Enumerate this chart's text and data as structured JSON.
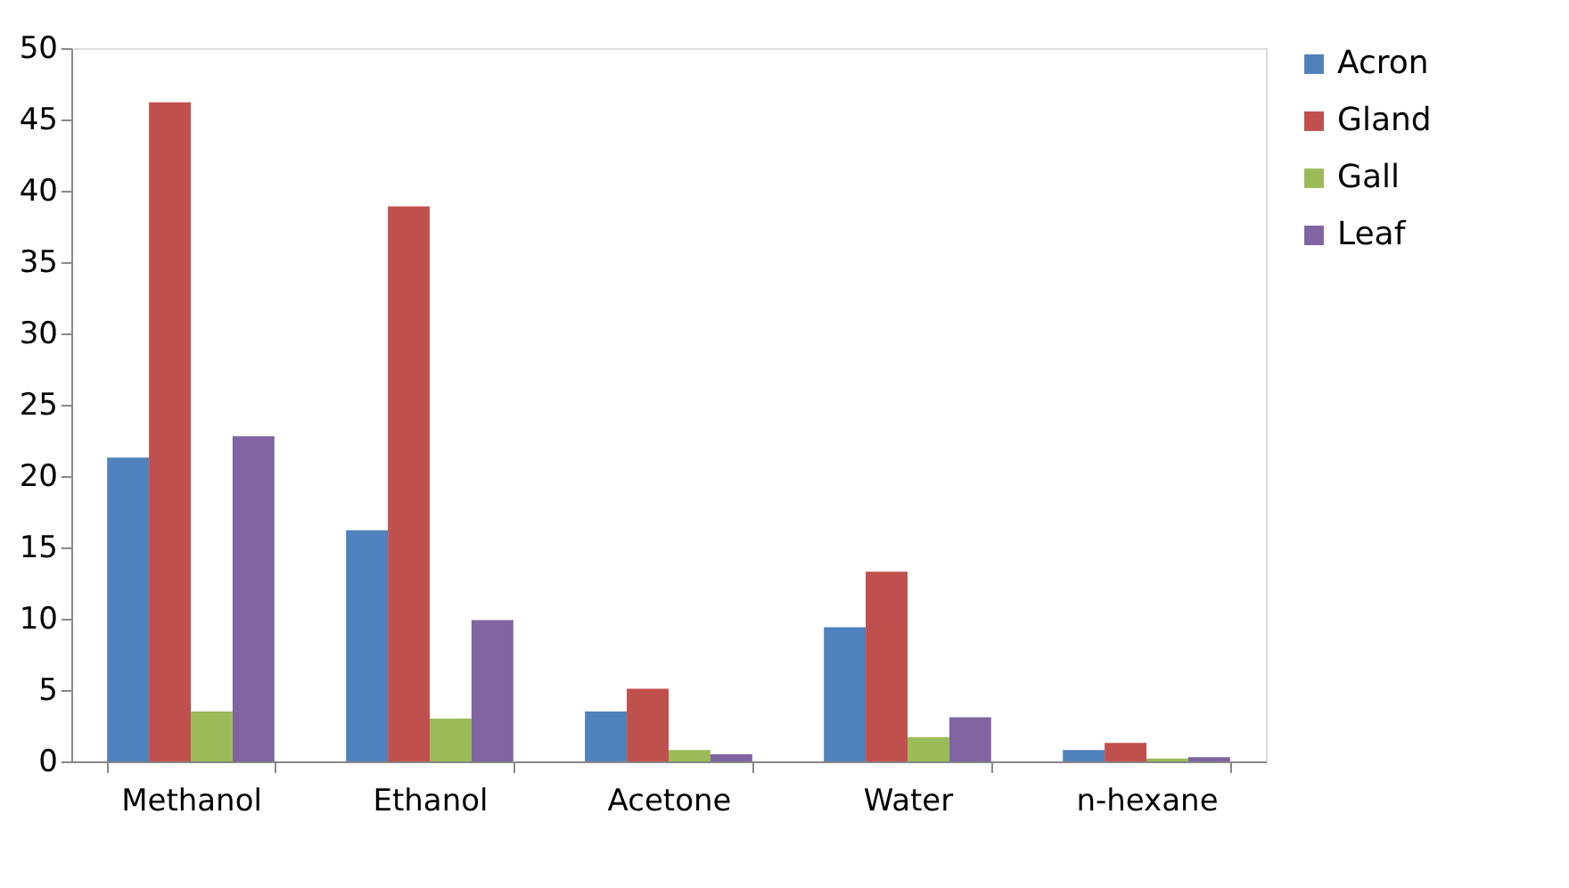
{
  "chart_data": {
    "type": "bar",
    "categories": [
      "Methanol",
      "Ethanol",
      "Acetone",
      "Water",
      "n-hexane"
    ],
    "series": [
      {
        "name": "Acron",
        "color": "#4f81bd",
        "values": [
          21.3,
          16.2,
          3.5,
          9.4,
          0.8
        ]
      },
      {
        "name": "Gland",
        "color": "#c0504d",
        "values": [
          46.2,
          38.9,
          5.1,
          13.3,
          1.3
        ]
      },
      {
        "name": "Gall",
        "color": "#9bbb59",
        "values": [
          3.5,
          3.0,
          0.8,
          1.7,
          0.2
        ]
      },
      {
        "name": "Leaf",
        "color": "#8064a2",
        "values": [
          22.8,
          9.9,
          0.5,
          3.1,
          0.3
        ]
      }
    ],
    "ylim": [
      0,
      50
    ],
    "yticks": [
      0,
      5,
      10,
      15,
      20,
      25,
      30,
      35,
      40,
      45,
      50
    ],
    "grid": false,
    "legend": "right"
  }
}
